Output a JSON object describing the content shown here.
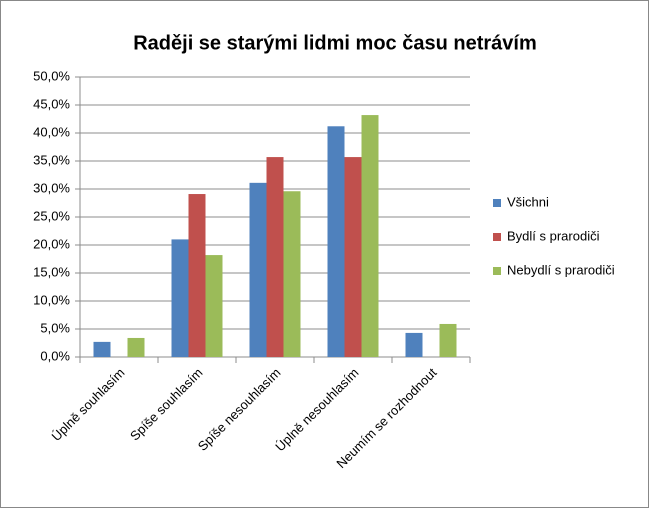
{
  "chart_data": {
    "type": "bar",
    "title": "Raději se starými lidmi moc času netrávím",
    "categories": [
      "Úplně souhlasím",
      "Spíše souhlasím",
      "Spíše nesouhlasím",
      "Úplně nesouhlasím",
      "Neumím se rozhodnout"
    ],
    "series": [
      {
        "name": "Všichni",
        "color": "#4f81bd",
        "values": [
          2.7,
          21.0,
          31.1,
          41.2,
          4.3
        ]
      },
      {
        "name": "Bydlí s prarodiči",
        "color": "#c0504d",
        "values": [
          0,
          29.1,
          35.7,
          35.7,
          0
        ]
      },
      {
        "name": "Nebydlí s prarodiči",
        "color": "#9bbb59",
        "values": [
          3.4,
          18.2,
          29.6,
          43.2,
          5.9
        ]
      }
    ],
    "ylim": [
      0,
      50
    ],
    "yticks": [
      {
        "value": 0,
        "label": "0,0%"
      },
      {
        "value": 5,
        "label": "5,0%"
      },
      {
        "value": 10,
        "label": "10,0%"
      },
      {
        "value": 15,
        "label": "15,0%"
      },
      {
        "value": 20,
        "label": "20,0%"
      },
      {
        "value": 25,
        "label": "25,0%"
      },
      {
        "value": 30,
        "label": "30,0%"
      },
      {
        "value": 35,
        "label": "35,0%"
      },
      {
        "value": 40,
        "label": "40,0%"
      },
      {
        "value": 45,
        "label": "45,0%"
      },
      {
        "value": 50,
        "label": "50,0%"
      }
    ],
    "grid": true,
    "legend": "right"
  }
}
